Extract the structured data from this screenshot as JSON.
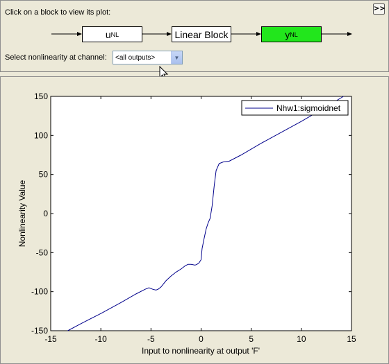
{
  "top": {
    "prompt": "Click on a block to view its plot:",
    "toggle_label": ">>",
    "blocks": {
      "input_nl": {
        "main": "u",
        "sub": "NL"
      },
      "linear": "Linear Block",
      "output_nl": {
        "main": "y",
        "sub": "NL"
      }
    },
    "channel_label": "Select nonlinearity at channel:",
    "channel_value": "<all outputs>",
    "highlight_color": "#22e61c"
  },
  "chart_data": {
    "type": "line",
    "title": "",
    "xlabel": "Input to nonlinearity at output 'F'",
    "ylabel": "Nonlinearity Value",
    "xlim": [
      -15,
      15
    ],
    "ylim": [
      -150,
      150
    ],
    "xticks": [
      -15,
      -10,
      -5,
      0,
      5,
      10,
      15
    ],
    "yticks": [
      -150,
      -100,
      -50,
      0,
      50,
      100,
      150
    ],
    "grid": false,
    "legend_position": "top-right",
    "series": [
      {
        "name": "Nhw1:sigmoidnet",
        "color": "#00008b",
        "x": [
          -13.3,
          -12,
          -10,
          -8,
          -6.5,
          -5.6,
          -5.2,
          -4.8,
          -4.5,
          -4.3,
          -4.0,
          -3.5,
          -3.0,
          -2.5,
          -2.0,
          -1.6,
          -1.3,
          -1.0,
          -0.6,
          -0.4,
          -0.2,
          0.0,
          0.1,
          0.3,
          0.5,
          0.7,
          0.9,
          1.1,
          1.3,
          1.5,
          1.8,
          2.2,
          2.8,
          4,
          6,
          8,
          10,
          12,
          14.2
        ],
        "y": [
          -150,
          -141,
          -128,
          -114,
          -103,
          -97,
          -95,
          -97,
          -98,
          -97,
          -94,
          -86,
          -80,
          -75,
          -71,
          -67,
          -65,
          -65,
          -66,
          -65,
          -63,
          -59,
          -45,
          -32,
          -20,
          -12,
          -6,
          10,
          35,
          55,
          64,
          66,
          67,
          75,
          90,
          104,
          118,
          133,
          150
        ]
      }
    ]
  }
}
